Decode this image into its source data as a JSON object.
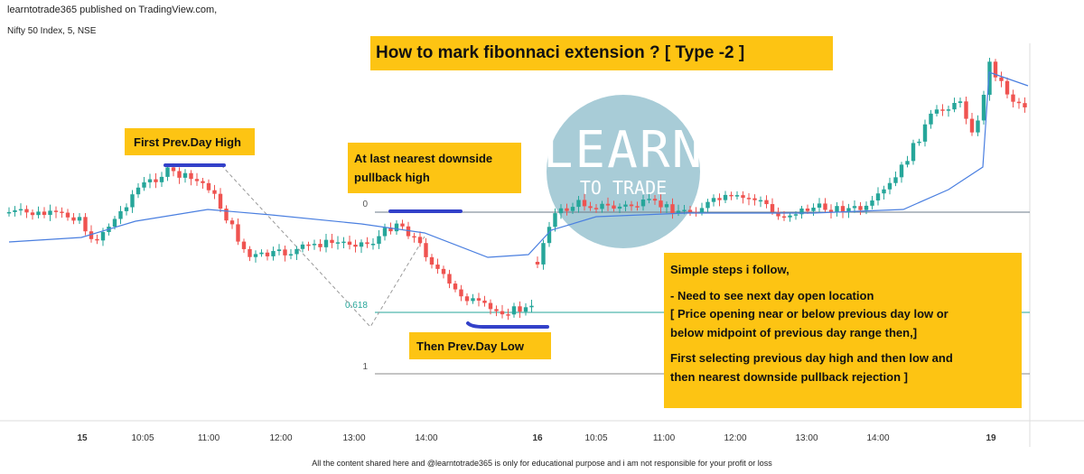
{
  "header": {
    "publisher": "learntotrade365 published on TradingView.com,",
    "symbol": "Nifty 50 Index, 5, NSE"
  },
  "title": "How to mark fibonnaci extension ? [ Type -2 ]",
  "annotations": {
    "prev_day_high": "First Prev.Day High",
    "pullback_high": [
      "At last nearest downside",
      "pullback high"
    ],
    "prev_day_low": "Then Prev.Day Low"
  },
  "steps": {
    "heading": "Simple steps i follow,",
    "lines": [
      "- Need to see next day open location",
      "[ Price opening near or below previous day low or",
      "below midpoint of previous day range then,]",
      "First selecting previous day high and then low and",
      "then nearest downside pullback rejection ]"
    ]
  },
  "fib_levels": [
    "0",
    "0.618",
    "1"
  ],
  "logo": [
    "LEARN",
    "TO TRADE"
  ],
  "time_axis": [
    "15",
    "10:05",
    "11:00",
    "12:00",
    "13:00",
    "14:00",
    "16",
    "10:05",
    "11:00",
    "12:00",
    "13:00",
    "14:00",
    "19"
  ],
  "footer": "All the content shared here and @learntotrade365 is only for educational purpose and i am not responsible for your profit or loss"
}
